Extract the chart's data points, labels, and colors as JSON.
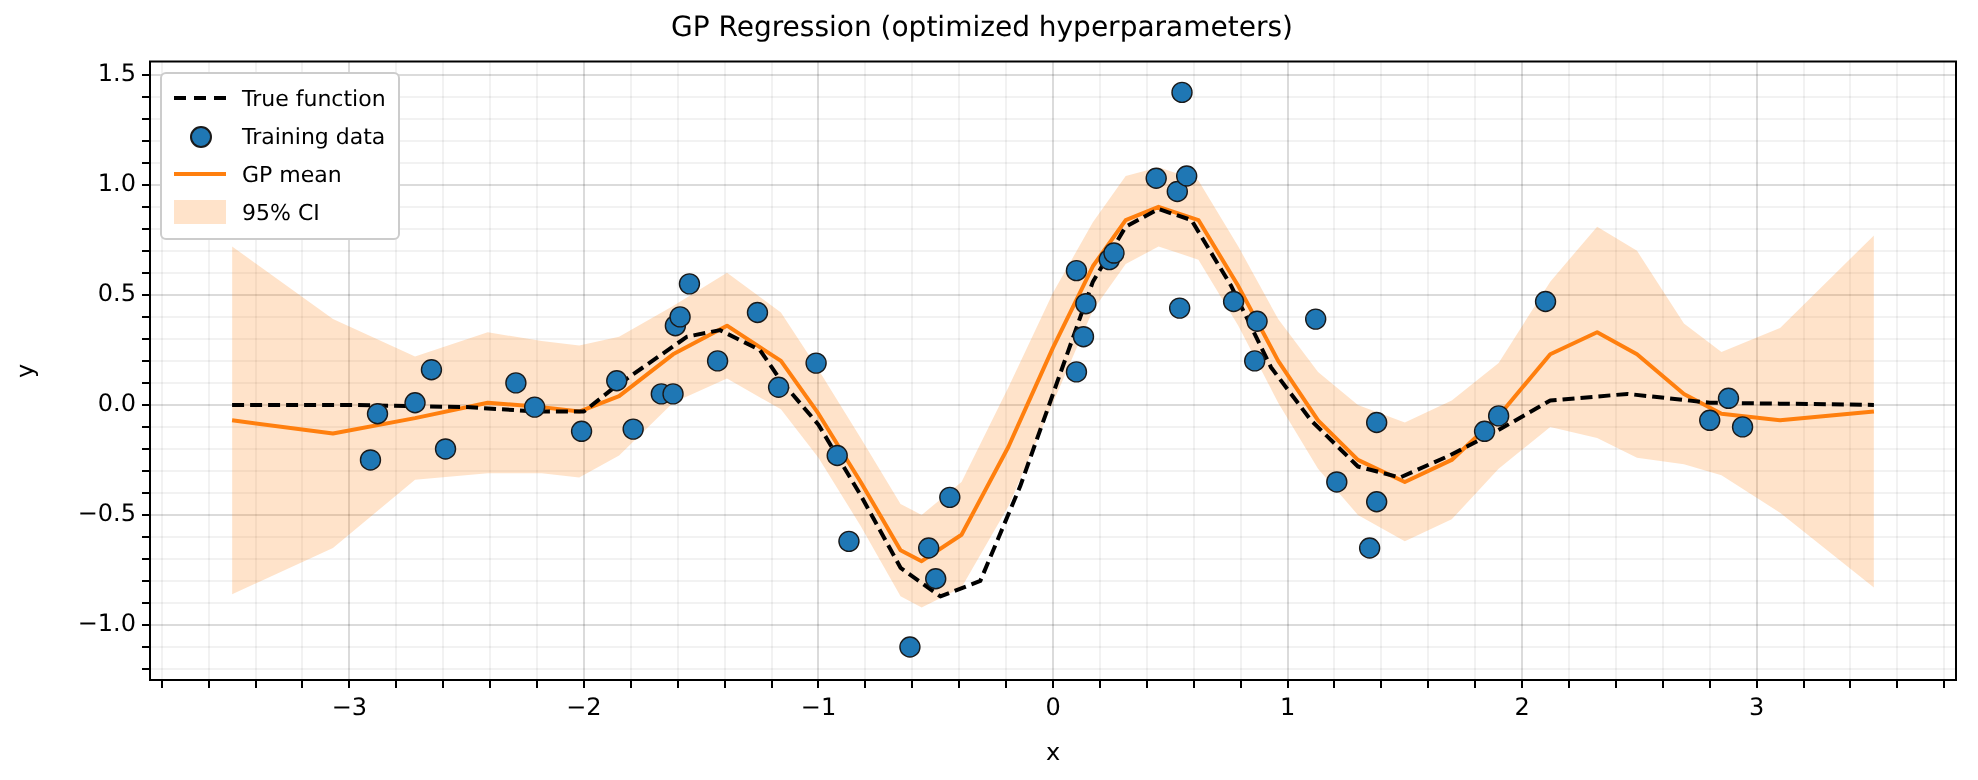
{
  "chart_data": {
    "type": "line",
    "title": "GP Regression (optimized hyperparameters)",
    "annotations": [
      "95% CI"
    ],
    "xlabel": "x",
    "ylabel": "y",
    "legend": "top left",
    "grid": true,
    "xlim": [
      -3.85,
      3.85
    ],
    "ylim": [
      -1.25,
      1.56
    ],
    "xticks": [
      {
        "value": -3.8,
        "label": null
      },
      {
        "value": -3.6,
        "label": null
      },
      {
        "value": -3.4,
        "label": null
      },
      {
        "value": -3.2,
        "label": null
      },
      {
        "value": -3,
        "label": "−3"
      },
      {
        "value": -2.8,
        "label": null
      },
      {
        "value": -2.6,
        "label": null
      },
      {
        "value": -2.4,
        "label": null
      },
      {
        "value": -2.2,
        "label": null
      },
      {
        "value": -2,
        "label": "−2"
      },
      {
        "value": -1.8,
        "label": null
      },
      {
        "value": -1.6,
        "label": null
      },
      {
        "value": -1.4,
        "label": null
      },
      {
        "value": -1.2,
        "label": null
      },
      {
        "value": -1,
        "label": "−1"
      },
      {
        "value": -0.8,
        "label": null
      },
      {
        "value": -0.6,
        "label": null
      },
      {
        "value": -0.4,
        "label": null
      },
      {
        "value": -0.2,
        "label": null
      },
      0,
      {
        "value": 0.2,
        "label": null
      },
      {
        "value": 0.4,
        "label": null
      },
      {
        "value": 0.6,
        "label": null
      },
      {
        "value": 0.8,
        "label": null
      },
      1,
      {
        "value": 1.2,
        "label": null
      },
      {
        "value": 1.4,
        "label": null
      },
      {
        "value": 1.6,
        "label": null
      },
      {
        "value": 1.8,
        "label": null
      },
      2,
      {
        "value": 2.2,
        "label": null
      },
      {
        "value": 2.4,
        "label": null
      },
      {
        "value": 2.6,
        "label": null
      },
      {
        "value": 2.8,
        "label": null
      },
      3,
      {
        "value": 3.2,
        "label": null
      },
      {
        "value": 3.4,
        "label": null
      },
      {
        "value": 3.6,
        "label": null
      },
      {
        "value": 3.8,
        "label": null
      }
    ],
    "yticks": [
      {
        "value": -1.2,
        "label": null
      },
      {
        "value": -1.1,
        "label": null
      },
      {
        "value": -1,
        "label": "−1.0"
      },
      {
        "value": -0.9,
        "label": null
      },
      {
        "value": -0.8,
        "label": null
      },
      {
        "value": -0.7,
        "label": null
      },
      {
        "value": -0.6,
        "label": null
      },
      {
        "value": -0.5,
        "label": "−0.5"
      },
      {
        "value": -0.4,
        "label": null
      },
      {
        "value": -0.3,
        "label": null
      },
      {
        "value": -0.2,
        "label": null
      },
      {
        "value": -0.1,
        "label": null
      },
      {
        "value": 0,
        "label": "0.0"
      },
      {
        "value": 0.1,
        "label": null
      },
      {
        "value": 0.2,
        "label": null
      },
      {
        "value": 0.3,
        "label": null
      },
      {
        "value": 0.4,
        "label": null
      },
      0.5,
      {
        "value": 0.6,
        "label": null
      },
      {
        "value": 0.7,
        "label": null
      },
      {
        "value": 0.8,
        "label": null
      },
      {
        "value": 0.9,
        "label": null
      },
      {
        "value": 1,
        "label": "1.0"
      },
      {
        "value": 1.1,
        "label": null
      },
      {
        "value": 1.2,
        "label": null
      },
      {
        "value": 1.3,
        "label": null
      },
      {
        "value": 1.4,
        "label": null
      },
      1.5
    ],
    "series": [
      {
        "name": "True function",
        "color": "#000000",
        "line_style": "dashed",
        "marker": "none",
        "x": [
          -3.5,
          -3.0,
          -2.5,
          -2.2,
          -2.0,
          -1.87,
          -1.56,
          -1.42,
          -1.25,
          -1.16,
          -1.0,
          -0.82,
          -0.65,
          -0.48,
          -0.31,
          -0.14,
          0.0,
          0.17,
          0.31,
          0.45,
          0.59,
          0.76,
          0.93,
          1.1,
          1.3,
          1.48,
          1.69,
          1.89,
          2.12,
          2.45,
          2.8,
          3.5
        ],
        "values": [
          0.0,
          0.0,
          -0.01,
          -0.03,
          -0.03,
          0.08,
          0.31,
          0.34,
          0.25,
          0.11,
          -0.09,
          -0.41,
          -0.74,
          -0.87,
          -0.8,
          -0.37,
          0.05,
          0.56,
          0.81,
          0.89,
          0.84,
          0.54,
          0.17,
          -0.07,
          -0.28,
          -0.33,
          -0.23,
          -0.12,
          0.02,
          0.05,
          0.01,
          0.0
        ]
      },
      {
        "name": "Training data",
        "type": "scatter",
        "color": "#1f77b4",
        "marker": "circle",
        "x": [
          -2.91,
          -2.88,
          -2.72,
          -2.65,
          -2.59,
          -2.29,
          -2.21,
          -2.01,
          -1.86,
          -1.79,
          -1.67,
          -1.62,
          -1.61,
          -1.59,
          -1.55,
          -1.43,
          -1.26,
          -1.17,
          -1.01,
          -0.92,
          -0.87,
          -0.61,
          -0.53,
          -0.5,
          -0.44,
          0.1,
          0.14,
          0.13,
          0.1,
          0.24,
          0.26,
          0.44,
          0.53,
          0.55,
          0.57,
          0.54,
          0.77,
          0.87,
          0.86,
          1.12,
          1.21,
          1.38,
          1.38,
          1.35,
          1.84,
          1.9,
          2.1,
          2.8,
          2.88,
          2.94
        ],
        "values": [
          -0.25,
          -0.04,
          0.01,
          0.16,
          -0.2,
          0.1,
          -0.01,
          -0.12,
          0.11,
          -0.11,
          0.05,
          0.05,
          0.36,
          0.4,
          0.55,
          0.2,
          0.42,
          0.08,
          0.19,
          -0.23,
          -0.62,
          -1.1,
          -0.65,
          -0.79,
          -0.42,
          0.61,
          0.46,
          0.31,
          0.15,
          0.66,
          0.69,
          1.03,
          0.97,
          1.42,
          1.04,
          0.44,
          0.47,
          0.38,
          0.2,
          0.39,
          -0.35,
          -0.08,
          -0.44,
          -0.65,
          -0.12,
          -0.05,
          0.47,
          -0.07,
          0.03,
          -0.1
        ]
      },
      {
        "name": "GP mean",
        "color": "#ff7f0e",
        "line_style": "solid",
        "marker": "none",
        "x": [
          -3.5,
          -3.07,
          -2.72,
          -2.41,
          -2.18,
          -2.02,
          -1.85,
          -1.62,
          -1.39,
          -1.16,
          -1.0,
          -0.82,
          -0.65,
          -0.56,
          -0.39,
          -0.19,
          0.0,
          0.17,
          0.31,
          0.45,
          0.62,
          0.79,
          0.96,
          1.13,
          1.3,
          1.5,
          1.7,
          1.9,
          2.12,
          2.32,
          2.49,
          2.69,
          2.85,
          3.1,
          3.5
        ],
        "values": [
          -0.07,
          -0.13,
          -0.06,
          0.01,
          -0.01,
          -0.03,
          0.04,
          0.23,
          0.36,
          0.2,
          -0.04,
          -0.35,
          -0.66,
          -0.71,
          -0.59,
          -0.19,
          0.26,
          0.63,
          0.84,
          0.9,
          0.84,
          0.54,
          0.2,
          -0.07,
          -0.25,
          -0.35,
          -0.25,
          -0.05,
          0.23,
          0.33,
          0.23,
          0.05,
          -0.04,
          -0.07,
          -0.03
        ],
        "lower": [
          -0.86,
          -0.65,
          -0.34,
          -0.31,
          -0.31,
          -0.33,
          -0.23,
          0.01,
          0.12,
          -0.02,
          -0.24,
          -0.55,
          -0.87,
          -0.92,
          -0.83,
          -0.46,
          0.01,
          0.43,
          0.64,
          0.72,
          0.66,
          0.36,
          0.01,
          -0.29,
          -0.5,
          -0.62,
          -0.52,
          -0.29,
          -0.1,
          -0.15,
          -0.24,
          -0.27,
          -0.32,
          -0.49,
          -0.83
        ],
        "upper": [
          0.72,
          0.39,
          0.22,
          0.33,
          0.29,
          0.27,
          0.31,
          0.45,
          0.6,
          0.42,
          0.16,
          -0.15,
          -0.45,
          -0.5,
          -0.35,
          0.08,
          0.51,
          0.83,
          1.04,
          1.08,
          1.02,
          0.72,
          0.39,
          0.15,
          0.0,
          -0.08,
          0.02,
          0.19,
          0.56,
          0.81,
          0.7,
          0.37,
          0.24,
          0.35,
          0.77
        ]
      }
    ]
  }
}
